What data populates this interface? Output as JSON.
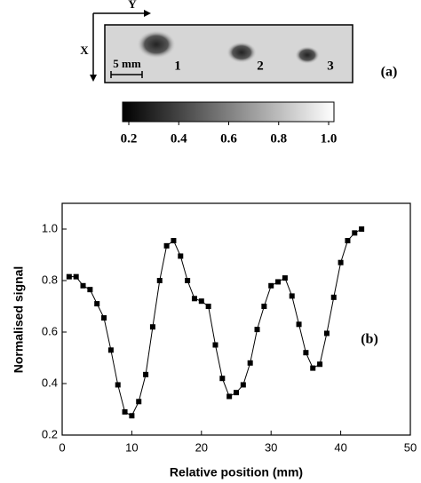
{
  "chart_data": [
    {
      "type": "colorbar",
      "panel_label": "(a)",
      "x_axis_label": "X",
      "y_axis_label": "Y",
      "scale_bar": "5 mm",
      "markers": [
        "1",
        "2",
        "3"
      ],
      "clim": [
        0.2,
        1.0
      ],
      "ticks": [
        0.2,
        0.4,
        0.6,
        0.8,
        {
          "value": 1,
          "label": "1.0"
        }
      ]
    },
    {
      "type": "line",
      "panel_label": "(b)",
      "x_label": "Relative position (mm)",
      "y_label": "Normalised signal",
      "x": [
        1,
        2,
        3,
        4,
        5,
        6,
        7,
        8,
        9,
        10,
        11,
        12,
        13,
        14,
        15,
        16,
        17,
        18,
        19,
        20,
        21,
        22,
        23,
        24,
        25,
        26,
        27,
        28,
        29,
        30,
        31,
        32,
        33,
        34,
        35,
        36,
        37,
        38,
        39,
        40,
        41,
        42,
        43
      ],
      "values": [
        0.815,
        0.815,
        0.78,
        0.765,
        0.71,
        0.655,
        0.53,
        0.395,
        0.29,
        0.275,
        0.33,
        0.435,
        0.62,
        0.8,
        0.935,
        0.955,
        0.895,
        0.8,
        0.73,
        0.72,
        0.7,
        0.55,
        0.42,
        0.35,
        0.365,
        0.395,
        0.48,
        0.61,
        0.7,
        0.78,
        0.795,
        0.81,
        0.74,
        0.63,
        0.52,
        0.46,
        0.475,
        0.595,
        0.735,
        0.87,
        0.955,
        0.985,
        1.0
      ],
      "color": "#000000",
      "xlim": [
        0,
        50
      ],
      "xticks": [
        0,
        10,
        20,
        30,
        40,
        50
      ],
      "ylim": [
        0.2,
        1.1
      ],
      "yticks": [
        0.2,
        0.4,
        0.6,
        0.8,
        {
          "value": 1,
          "label": "1.0"
        }
      ]
    }
  ]
}
